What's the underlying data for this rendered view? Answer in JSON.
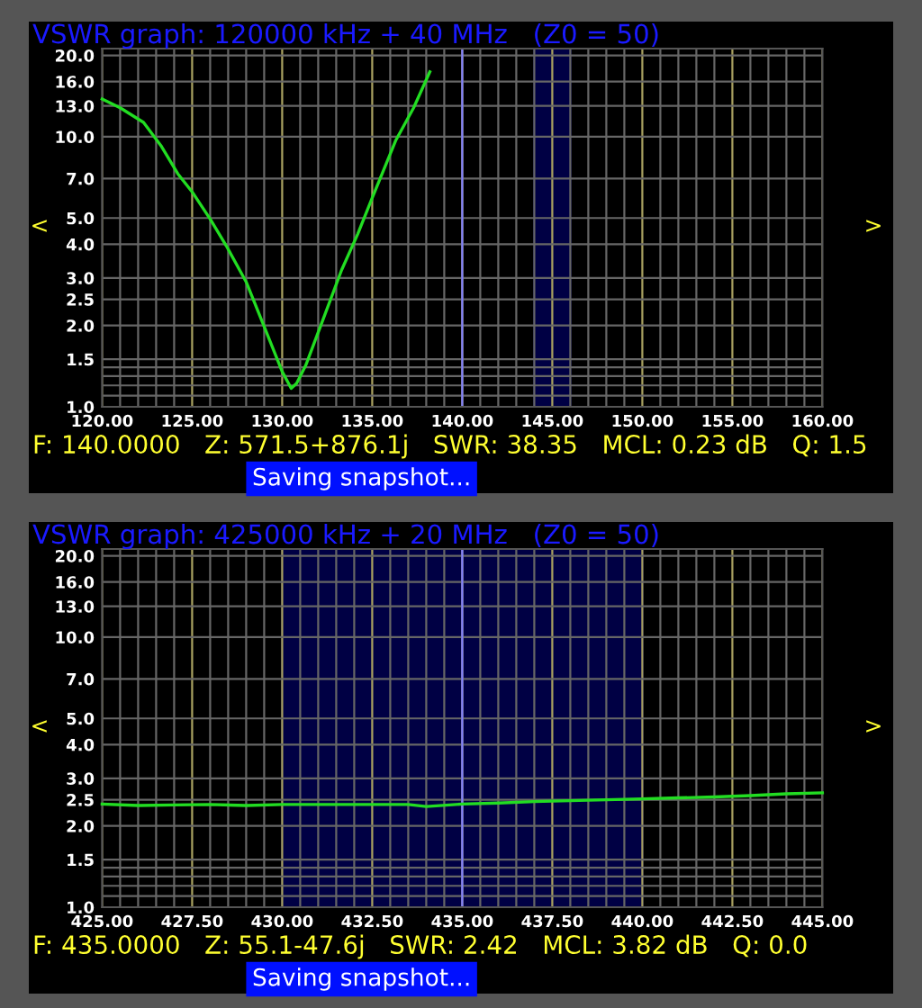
{
  "chart_data": [
    {
      "type": "line",
      "title": "VSWR graph: 120000 kHz + 40 MHz   (Z0 = 50)",
      "x": [
        120.0,
        121.0,
        122.3,
        123.3,
        124.2,
        125.0,
        126.0,
        126.9,
        128.0,
        129.0,
        130.0,
        130.5,
        130.8,
        131.3,
        132.3,
        133.3,
        134.2,
        135.0,
        136.3,
        137.3,
        138.2
      ],
      "series": [
        {
          "color": "#22dd22",
          "values": [
            13.8,
            12.8,
            11.3,
            9.2,
            7.3,
            6.25,
            4.96,
            3.94,
            2.9,
            1.98,
            1.35,
            1.17,
            1.22,
            1.42,
            2.13,
            3.21,
            4.37,
            5.94,
            9.67,
            12.8,
            17.4
          ]
        }
      ],
      "log": "y",
      "xlim": [
        120,
        160
      ],
      "ylim": [
        1,
        21.2
      ],
      "xticks": [
        {
          "value": 120,
          "label": "120.00"
        },
        {
          "value": 121,
          "label": null
        },
        {
          "value": 122,
          "label": null
        },
        {
          "value": 123,
          "label": null
        },
        {
          "value": 124,
          "label": null
        },
        {
          "value": 125,
          "label": "125.00"
        },
        {
          "value": 126,
          "label": null
        },
        {
          "value": 127,
          "label": null
        },
        {
          "value": 128,
          "label": null
        },
        {
          "value": 129,
          "label": null
        },
        {
          "value": 130,
          "label": "130.00"
        },
        {
          "value": 131,
          "label": null
        },
        {
          "value": 132,
          "label": null
        },
        {
          "value": 133,
          "label": null
        },
        {
          "value": 134,
          "label": null
        },
        {
          "value": 135,
          "label": "135.00"
        },
        {
          "value": 136,
          "label": null
        },
        {
          "value": 137,
          "label": null
        },
        {
          "value": 138,
          "label": null
        },
        {
          "value": 139,
          "label": null
        },
        {
          "value": 140,
          "label": "140.00"
        },
        {
          "value": 141,
          "label": null
        },
        {
          "value": 142,
          "label": null
        },
        {
          "value": 143,
          "label": null
        },
        {
          "value": 144,
          "label": null
        },
        {
          "value": 145,
          "label": "145.00"
        },
        {
          "value": 146,
          "label": null
        },
        {
          "value": 147,
          "label": null
        },
        {
          "value": 148,
          "label": null
        },
        {
          "value": 149,
          "label": null
        },
        {
          "value": 150,
          "label": "150.00"
        },
        {
          "value": 151,
          "label": null
        },
        {
          "value": 152,
          "label": null
        },
        {
          "value": 153,
          "label": null
        },
        {
          "value": 154,
          "label": null
        },
        {
          "value": 155,
          "label": "155.00"
        },
        {
          "value": 156,
          "label": null
        },
        {
          "value": 157,
          "label": null
        },
        {
          "value": 158,
          "label": null
        },
        {
          "value": 159,
          "label": null
        },
        {
          "value": 160,
          "label": "160.00"
        }
      ],
      "yticks": [
        {
          "value": 1,
          "label": "1.0"
        },
        {
          "value": 1.1,
          "label": null
        },
        {
          "value": 1.2,
          "label": null
        },
        {
          "value": 1.3,
          "label": null
        },
        {
          "value": 1.4,
          "label": null
        },
        {
          "value": 1.5,
          "label": "1.5"
        },
        {
          "value": 2,
          "label": "2.0"
        },
        {
          "value": 2.5,
          "label": "2.5"
        },
        {
          "value": 3,
          "label": "3.0"
        },
        {
          "value": 4,
          "label": "4.0"
        },
        {
          "value": 5,
          "label": "5.0"
        },
        {
          "value": 7,
          "label": "7.0"
        },
        {
          "value": 10,
          "label": "10.0"
        },
        {
          "value": 13,
          "label": "13.0"
        },
        {
          "value": 16,
          "label": "16.0"
        },
        {
          "value": 20,
          "label": "20.0"
        }
      ],
      "grid": true,
      "marker": "none",
      "line_style": "solid",
      "ref_lines": [
        {
          "axis": "x",
          "value": 140,
          "color": "#8080ff"
        }
      ],
      "bands": [
        {
          "axis": "x",
          "from": 144,
          "to": 146,
          "color": "#000050"
        }
      ],
      "annotations": [
        "F: 140.0000   Z: 571.5+876.1j   SWR: 38.35   MCL: 0.23 dB   Q: 1.5",
        "Saving snapshot...",
        "<",
        ">"
      ]
    },
    {
      "type": "line",
      "title": "VSWR graph: 425000 kHz + 20 MHz   (Z0 = 50)",
      "x": [
        425,
        426,
        427,
        428,
        429,
        430,
        432,
        433.5,
        434,
        435,
        436,
        437,
        438,
        439,
        440,
        441,
        442,
        443,
        444,
        445
      ],
      "series": [
        {
          "color": "#22dd22",
          "values": [
            2.41,
            2.38,
            2.39,
            2.4,
            2.38,
            2.4,
            2.4,
            2.4,
            2.36,
            2.41,
            2.43,
            2.46,
            2.48,
            2.5,
            2.52,
            2.54,
            2.56,
            2.59,
            2.63,
            2.65
          ]
        }
      ],
      "log": "y",
      "xlim": [
        425,
        445
      ],
      "ylim": [
        1,
        21.2
      ],
      "xticks": [
        {
          "value": 425,
          "label": "425.00"
        },
        {
          "value": 425.5,
          "label": null
        },
        {
          "value": 426,
          "label": null
        },
        {
          "value": 426.5,
          "label": null
        },
        {
          "value": 427,
          "label": null
        },
        {
          "value": 427.5,
          "label": "427.50"
        },
        {
          "value": 428,
          "label": null
        },
        {
          "value": 428.5,
          "label": null
        },
        {
          "value": 429,
          "label": null
        },
        {
          "value": 429.5,
          "label": null
        },
        {
          "value": 430,
          "label": "430.00"
        },
        {
          "value": 430.5,
          "label": null
        },
        {
          "value": 431,
          "label": null
        },
        {
          "value": 431.5,
          "label": null
        },
        {
          "value": 432,
          "label": null
        },
        {
          "value": 432.5,
          "label": "432.50"
        },
        {
          "value": 433,
          "label": null
        },
        {
          "value": 433.5,
          "label": null
        },
        {
          "value": 434,
          "label": null
        },
        {
          "value": 434.5,
          "label": null
        },
        {
          "value": 435,
          "label": "435.00"
        },
        {
          "value": 435.5,
          "label": null
        },
        {
          "value": 436,
          "label": null
        },
        {
          "value": 436.5,
          "label": null
        },
        {
          "value": 437,
          "label": null
        },
        {
          "value": 437.5,
          "label": "437.50"
        },
        {
          "value": 438,
          "label": null
        },
        {
          "value": 438.5,
          "label": null
        },
        {
          "value": 439,
          "label": null
        },
        {
          "value": 439.5,
          "label": null
        },
        {
          "value": 440,
          "label": "440.00"
        },
        {
          "value": 440.5,
          "label": null
        },
        {
          "value": 441,
          "label": null
        },
        {
          "value": 441.5,
          "label": null
        },
        {
          "value": 442,
          "label": null
        },
        {
          "value": 442.5,
          "label": "442.50"
        },
        {
          "value": 443,
          "label": null
        },
        {
          "value": 443.5,
          "label": null
        },
        {
          "value": 444,
          "label": null
        },
        {
          "value": 444.5,
          "label": null
        },
        {
          "value": 445,
          "label": "445.00"
        }
      ],
      "yticks": [
        {
          "value": 1,
          "label": "1.0"
        },
        {
          "value": 1.1,
          "label": null
        },
        {
          "value": 1.2,
          "label": null
        },
        {
          "value": 1.3,
          "label": null
        },
        {
          "value": 1.4,
          "label": null
        },
        {
          "value": 1.5,
          "label": "1.5"
        },
        {
          "value": 2,
          "label": "2.0"
        },
        {
          "value": 2.5,
          "label": "2.5"
        },
        {
          "value": 3,
          "label": "3.0"
        },
        {
          "value": 4,
          "label": "4.0"
        },
        {
          "value": 5,
          "label": "5.0"
        },
        {
          "value": 7,
          "label": "7.0"
        },
        {
          "value": 10,
          "label": "10.0"
        },
        {
          "value": 13,
          "label": "13.0"
        },
        {
          "value": 16,
          "label": "16.0"
        },
        {
          "value": 20,
          "label": "20.0"
        }
      ],
      "grid": true,
      "marker": "none",
      "line_style": "solid",
      "ref_lines": [
        {
          "axis": "x",
          "value": 435,
          "color": "#8080ff"
        }
      ],
      "bands": [
        {
          "axis": "x",
          "from": 430,
          "to": 440,
          "color": "#000050"
        }
      ],
      "annotations": [
        "F: 435.0000   Z: 55.1-47.6j   SWR: 2.42   MCL: 3.82 dB   Q: 0.0",
        "Saving snapshot...",
        "<",
        ">"
      ]
    }
  ]
}
